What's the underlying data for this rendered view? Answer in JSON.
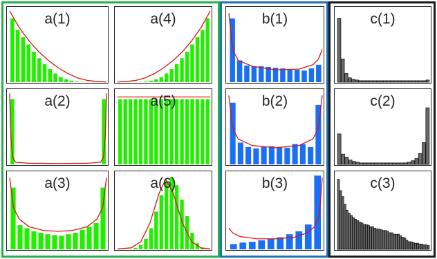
{
  "colors": {
    "group_a_border": "#22b04b",
    "group_b_border": "#1f6fb3",
    "group_c_border": "#1a1a1a",
    "green_bar": "#22ee00",
    "blue_bar": "#1a6ff5",
    "gray_bar": "#6a6a6a",
    "curve": "#e01010"
  },
  "panels": [
    {
      "label": "a(1)",
      "fill": "green",
      "bars": [
        0.88,
        0.72,
        0.62,
        0.52,
        0.42,
        0.33,
        0.25,
        0.18,
        0.12,
        0.07,
        0.04,
        0.02,
        0.01,
        0.005,
        0.003,
        0.002,
        0.001,
        0.001
      ],
      "curve": [
        [
          0,
          0.98
        ],
        [
          0.1,
          0.75
        ],
        [
          0.2,
          0.57
        ],
        [
          0.3,
          0.42
        ],
        [
          0.4,
          0.3
        ],
        [
          0.5,
          0.2
        ],
        [
          0.6,
          0.12
        ],
        [
          0.7,
          0.06
        ],
        [
          0.8,
          0.025
        ],
        [
          0.9,
          0.01
        ],
        [
          1,
          0.003
        ]
      ]
    },
    {
      "label": "a(4)",
      "fill": "green",
      "bars": [
        0.001,
        0.001,
        0.002,
        0.003,
        0.005,
        0.01,
        0.02,
        0.04,
        0.07,
        0.12,
        0.18,
        0.25,
        0.33,
        0.42,
        0.52,
        0.62,
        0.72,
        0.88
      ],
      "curve": [
        [
          0,
          0.003
        ],
        [
          0.1,
          0.01
        ],
        [
          0.2,
          0.025
        ],
        [
          0.3,
          0.06
        ],
        [
          0.4,
          0.12
        ],
        [
          0.5,
          0.2
        ],
        [
          0.6,
          0.3
        ],
        [
          0.7,
          0.42
        ],
        [
          0.8,
          0.57
        ],
        [
          0.9,
          0.75
        ],
        [
          1,
          0.98
        ]
      ]
    },
    {
      "label": "a(2)",
      "fill": "green",
      "bars": [
        0.9,
        0,
        0,
        0,
        0,
        0,
        0,
        0,
        0,
        0,
        0,
        0,
        0,
        0,
        0,
        0,
        0,
        0.9
      ],
      "curve": [
        [
          0,
          0.98
        ],
        [
          0.012,
          0.4
        ],
        [
          0.03,
          0.1
        ],
        [
          0.06,
          0.03
        ],
        [
          0.2,
          0.015
        ],
        [
          0.5,
          0.012
        ],
        [
          0.8,
          0.015
        ],
        [
          0.94,
          0.03
        ],
        [
          0.97,
          0.1
        ],
        [
          0.988,
          0.4
        ],
        [
          1,
          0.98
        ]
      ]
    },
    {
      "label": "a(5)",
      "fill": "green",
      "bars": [
        0.9,
        0.9,
        0.9,
        0.9,
        0.9,
        0.9,
        0.9,
        0.9,
        0.9,
        0.9,
        0.9,
        0.9,
        0.9,
        0.9,
        0.9,
        0.9,
        0.9,
        0.9
      ],
      "curve": [
        [
          0,
          0.93
        ],
        [
          1,
          0.93
        ]
      ]
    },
    {
      "label": "a(3)",
      "fill": "green",
      "bars": [
        0.82,
        0.32,
        0.28,
        0.24,
        0.22,
        0.2,
        0.19,
        0.18,
        0.2,
        0.22,
        0.26,
        0.3,
        0.35,
        0.82
      ],
      "curve": [
        [
          0,
          0.95
        ],
        [
          0.04,
          0.55
        ],
        [
          0.1,
          0.4
        ],
        [
          0.2,
          0.3
        ],
        [
          0.35,
          0.25
        ],
        [
          0.5,
          0.24
        ],
        [
          0.65,
          0.25
        ],
        [
          0.8,
          0.3
        ],
        [
          0.9,
          0.4
        ],
        [
          0.96,
          0.55
        ],
        [
          1,
          0.95
        ]
      ]
    },
    {
      "label": "a(6)",
      "fill": "green",
      "bars": [
        0,
        0,
        0,
        0.02,
        0.06,
        0.14,
        0.28,
        0.5,
        0.72,
        0.9,
        0.96,
        0.85,
        0.66,
        0.44,
        0.22,
        0.08,
        0.02,
        0
      ],
      "curve": [
        [
          0,
          0.005
        ],
        [
          0.15,
          0.02
        ],
        [
          0.25,
          0.1
        ],
        [
          0.35,
          0.35
        ],
        [
          0.45,
          0.75
        ],
        [
          0.52,
          0.93
        ],
        [
          0.6,
          0.75
        ],
        [
          0.7,
          0.35
        ],
        [
          0.8,
          0.1
        ],
        [
          0.9,
          0.02
        ],
        [
          1,
          0.005
        ]
      ]
    },
    {
      "label": "b(1)",
      "fill": "blue",
      "bars": [
        0.88,
        0.3,
        0.23,
        0.22,
        0.22,
        0.21,
        0.2,
        0.19,
        0.18,
        0.17,
        0.16,
        0.19,
        0.24
      ],
      "curve": [
        [
          0,
          0.95
        ],
        [
          0.04,
          0.45
        ],
        [
          0.1,
          0.3
        ],
        [
          0.25,
          0.22
        ],
        [
          0.5,
          0.17
        ],
        [
          0.75,
          0.18
        ],
        [
          0.9,
          0.24
        ],
        [
          0.96,
          0.32
        ],
        [
          1,
          0.45
        ]
      ]
    },
    {
      "label": "b(2)",
      "fill": "blue",
      "bars": [
        0.85,
        0.3,
        0.24,
        0.22,
        0.24,
        0.25,
        0.24,
        0.23,
        0.28,
        0.28,
        0.24,
        0.82
      ],
      "curve": [
        [
          0,
          0.95
        ],
        [
          0.04,
          0.5
        ],
        [
          0.1,
          0.35
        ],
        [
          0.25,
          0.26
        ],
        [
          0.5,
          0.23
        ],
        [
          0.75,
          0.26
        ],
        [
          0.9,
          0.35
        ],
        [
          0.96,
          0.5
        ],
        [
          1,
          0.95
        ]
      ]
    },
    {
      "label": "b(3)",
      "fill": "blue",
      "bars": [
        0.07,
        0.09,
        0.1,
        0.12,
        0.14,
        0.16,
        0.2,
        0.24,
        0.33,
        0.98
      ],
      "curve": [
        [
          0,
          0.28
        ],
        [
          0.04,
          0.22
        ],
        [
          0.12,
          0.17
        ],
        [
          0.3,
          0.14
        ],
        [
          0.5,
          0.14
        ],
        [
          0.7,
          0.16
        ],
        [
          0.84,
          0.22
        ],
        [
          0.92,
          0.3
        ],
        [
          0.97,
          0.45
        ],
        [
          1,
          0.95
        ]
      ]
    },
    {
      "label": "c(1)",
      "fill": "gray",
      "bars": [
        0.88,
        0.32,
        0.12,
        0.06,
        0.04,
        0.03,
        0.02,
        0.02,
        0.02,
        0.02,
        0.02,
        0.02,
        0.02,
        0.02,
        0.02,
        0.02,
        0.02,
        0.02,
        0.02,
        0.02,
        0.02,
        0.02,
        0.02,
        0.02,
        0.02,
        0.03
      ],
      "curve": []
    },
    {
      "label": "c(2)",
      "fill": "gray",
      "bars": [
        0.42,
        0.14,
        0.1,
        0.06,
        0.04,
        0.03,
        0.02,
        0.02,
        0.02,
        0.02,
        0.02,
        0.02,
        0.02,
        0.02,
        0.02,
        0.02,
        0.02,
        0.02,
        0.02,
        0.03,
        0.05,
        0.08,
        0.15,
        0.3,
        0.78
      ],
      "curve": []
    },
    {
      "label": "c(3)",
      "fill": "gray",
      "bars": [
        0.93,
        0.78,
        0.7,
        0.6,
        0.52,
        0.48,
        0.45,
        0.42,
        0.4,
        0.38,
        0.36,
        0.35,
        0.33,
        0.33,
        0.32,
        0.3,
        0.3,
        0.28,
        0.27,
        0.27,
        0.26,
        0.25,
        0.25,
        0.24,
        0.22,
        0.22,
        0.2,
        0.2,
        0.2,
        0.18,
        0.16,
        0.15,
        0.12,
        0.1,
        0.1,
        0.09,
        0.08,
        0.08,
        0.07,
        0.07,
        0.06,
        0.06,
        0.05
      ],
      "curve": []
    }
  ]
}
